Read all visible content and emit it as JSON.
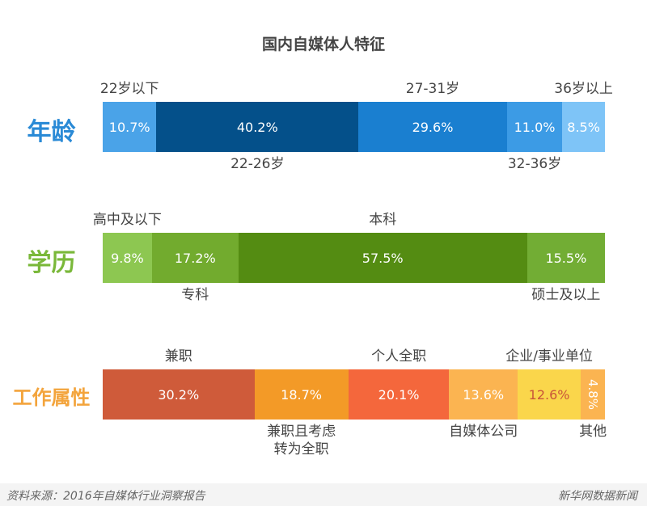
{
  "chart_data": {
    "type": "bar",
    "stacked": true,
    "orientation": "horizontal",
    "title": "国内自媒体人特征",
    "unit": "%",
    "groups": [
      {
        "name": "年龄",
        "color": "#2a8ad6",
        "segments": [
          {
            "label": "22岁以下",
            "value": 10.7,
            "display": "10.7%",
            "color": "#4aa3e8",
            "label_pos": "above"
          },
          {
            "label": "22-26岁",
            "value": 40.2,
            "display": "40.2%",
            "color": "#04508a",
            "label_pos": "below"
          },
          {
            "label": "27-31岁",
            "value": 29.6,
            "display": "29.6%",
            "color": "#1a7fd0",
            "label_pos": "above"
          },
          {
            "label": "32-36岁",
            "value": 11.0,
            "display": "11.0%",
            "color": "#3c9be5",
            "label_pos": "below"
          },
          {
            "label": "36岁以上",
            "value": 8.5,
            "display": "8.5%",
            "color": "#7ec4f7",
            "label_pos": "above"
          }
        ]
      },
      {
        "name": "学历",
        "color": "#7ab83a",
        "segments": [
          {
            "label": "高中及以下",
            "value": 9.8,
            "display": "9.8%",
            "color": "#8dc751",
            "label_pos": "above"
          },
          {
            "label": "专科",
            "value": 17.2,
            "display": "17.2%",
            "color": "#72ab2e",
            "label_pos": "below"
          },
          {
            "label": "本科",
            "value": 57.5,
            "display": "57.5%",
            "color": "#548c12",
            "label_pos": "above"
          },
          {
            "label": "硕士及以上",
            "value": 15.5,
            "display": "15.5%",
            "color": "#72ad34",
            "label_pos": "below"
          }
        ]
      },
      {
        "name": "工作属性",
        "color": "#f3a43c",
        "segments": [
          {
            "label": "兼职",
            "value": 30.2,
            "display": "30.2%",
            "color": "#cf5b3a",
            "label_pos": "above"
          },
          {
            "label": "兼职且考虑\n转为全职",
            "value": 18.7,
            "display": "18.7%",
            "color": "#f39a27",
            "label_pos": "below"
          },
          {
            "label": "个人全职",
            "value": 20.1,
            "display": "20.1%",
            "color": "#f4673c",
            "label_pos": "above"
          },
          {
            "label": "自媒体公司",
            "value": 13.6,
            "display": "13.6%",
            "color": "#fbb451",
            "label_pos": "below"
          },
          {
            "label": "企业/事业单位",
            "value": 12.6,
            "display": "12.6%",
            "color": "#fad64b",
            "text_color": "#c9553a",
            "label_pos": "above"
          },
          {
            "label": "其他",
            "value": 4.8,
            "display": "4.8%",
            "color": "#fbb451",
            "label_pos": "below",
            "vertical": true
          }
        ]
      }
    ]
  },
  "footer": {
    "source": "资料来源：2016年自媒体行业洞察报告",
    "brand": "新华网数据新闻"
  }
}
